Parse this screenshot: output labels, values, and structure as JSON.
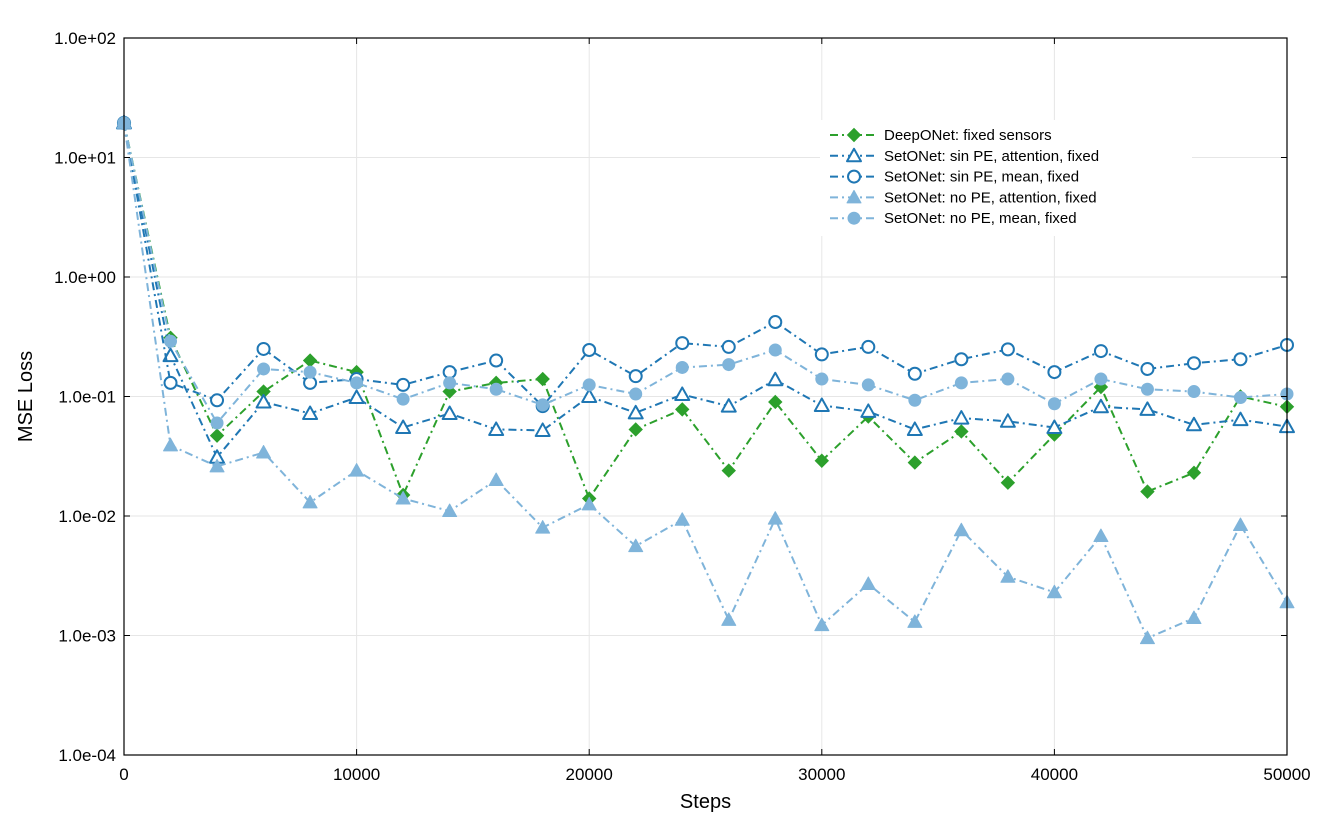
{
  "chart_data": {
    "type": "line",
    "title": "",
    "xlabel": "Steps",
    "ylabel": "MSE Loss",
    "xlim": [
      0,
      50000
    ],
    "ylim": [
      0.0001,
      100
    ],
    "yscale": "log",
    "grid": true,
    "legend_position": "top-right",
    "x_ticks": [
      0,
      10000,
      20000,
      30000,
      40000,
      50000
    ],
    "x_tick_labels": [
      "0",
      "10000",
      "20000",
      "30000",
      "40000",
      "50000"
    ],
    "y_ticks": [
      0.0001,
      0.001,
      0.01,
      0.1,
      1,
      10,
      100
    ],
    "y_tick_labels": [
      "1.0e-04",
      "1.0e-03",
      "1.0e-02",
      "1.0e-01",
      "1.0e+00",
      "1.0e+01",
      "1.0e+02"
    ],
    "x": [
      0,
      2000,
      4000,
      6000,
      8000,
      10000,
      12000,
      14000,
      16000,
      18000,
      20000,
      22000,
      24000,
      26000,
      28000,
      30000,
      32000,
      34000,
      36000,
      38000,
      40000,
      42000,
      44000,
      46000,
      48000,
      50000
    ],
    "series": [
      {
        "name": "DeepONet: fixed sensors",
        "color": "#2ca02c",
        "marker": "diamond",
        "values": [
          19.5,
          0.31,
          0.047,
          0.11,
          0.2,
          0.16,
          0.015,
          0.11,
          0.13,
          0.14,
          0.014,
          0.053,
          0.078,
          0.024,
          0.09,
          0.029,
          0.068,
          0.028,
          0.051,
          0.019,
          0.048,
          0.12,
          0.016,
          0.023,
          0.1,
          0.082
        ]
      },
      {
        "name": "SetONet: sin PE, attention, fixed",
        "color": "#1f77b4",
        "marker": "triangle-open",
        "values": [
          19.5,
          0.22,
          0.031,
          0.09,
          0.072,
          0.098,
          0.055,
          0.072,
          0.053,
          0.052,
          0.1,
          0.073,
          0.104,
          0.083,
          0.138,
          0.084,
          0.075,
          0.053,
          0.066,
          0.062,
          0.055,
          0.082,
          0.078,
          0.058,
          0.064,
          0.056
        ]
      },
      {
        "name": "SetONet: sin PE, mean, fixed",
        "color": "#1f77b4",
        "marker": "circle-open",
        "values": [
          19.5,
          0.13,
          0.093,
          0.25,
          0.13,
          0.14,
          0.125,
          0.16,
          0.2,
          0.083,
          0.245,
          0.148,
          0.28,
          0.26,
          0.42,
          0.225,
          0.26,
          0.155,
          0.205,
          0.248,
          0.16,
          0.24,
          0.17,
          0.19,
          0.205,
          0.27
        ]
      },
      {
        "name": "SetONet: no PE, attention, fixed",
        "color": "#7fb4da",
        "marker": "triangle",
        "values": [
          19.5,
          0.039,
          0.026,
          0.034,
          0.013,
          0.024,
          0.014,
          0.011,
          0.02,
          0.008,
          0.0125,
          0.0056,
          0.0093,
          0.00135,
          0.0095,
          0.00122,
          0.0027,
          0.0013,
          0.0076,
          0.0031,
          0.0023,
          0.0068,
          0.00095,
          0.0014,
          0.0084,
          0.0019
        ]
      },
      {
        "name": "SetONet: no PE, mean, fixed",
        "color": "#7fb4da",
        "marker": "circle",
        "values": [
          19.5,
          0.29,
          0.06,
          0.17,
          0.16,
          0.13,
          0.095,
          0.13,
          0.115,
          0.085,
          0.125,
          0.105,
          0.175,
          0.185,
          0.245,
          0.14,
          0.125,
          0.093,
          0.13,
          0.14,
          0.087,
          0.14,
          0.115,
          0.11,
          0.098,
          0.105
        ]
      }
    ]
  }
}
